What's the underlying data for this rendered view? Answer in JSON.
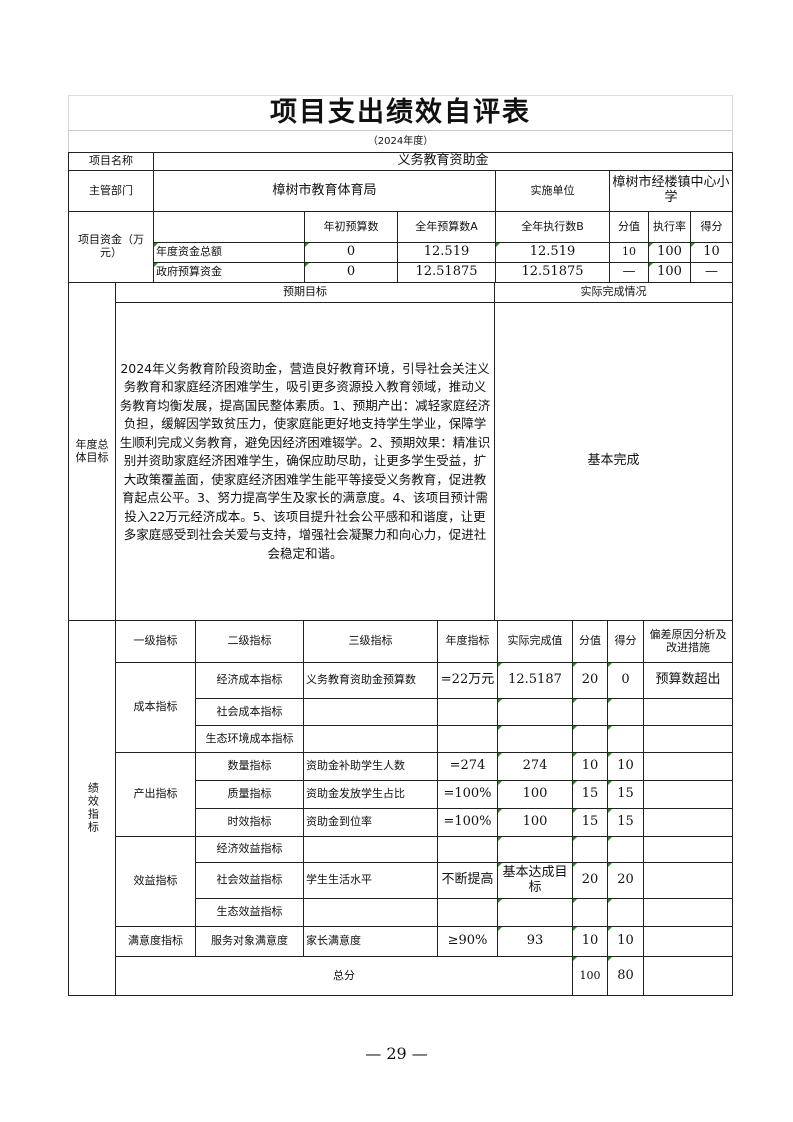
{
  "title": "项目支出绩效自评表",
  "subtitle": "（2024年度）",
  "project": {
    "name_label": "项目名称",
    "name": "义务教育资助金",
    "dept_label": "主管部门",
    "dept": "樟树市教育体育局",
    "impl_label": "实施单位",
    "impl": "樟树市经楼镇中心小学"
  },
  "funds": {
    "label": "项目资金（万元）",
    "headers": [
      "年初预算数",
      "全年预算数A",
      "全年执行数B",
      "分值",
      "执行率",
      "得分"
    ],
    "rows": [
      {
        "name": "年度资金总额",
        "initial": "0",
        "budget": "12.519",
        "executed": "12.519",
        "score_value": "10",
        "rate": "100",
        "score": "10"
      },
      {
        "name": "政府预算资金",
        "initial": "0",
        "budget": "12.51875",
        "executed": "12.51875",
        "score_value": "—",
        "rate": "100",
        "score": "—"
      }
    ]
  },
  "goals": {
    "label": "年度总体目标",
    "expected_label": "预期目标",
    "actual_label": "实际完成情况",
    "expected": "2024年义务教育阶段资助金，营造良好教育环境，引导社会关注义务教育和家庭经济困难学生，吸引更多资源投入教育领域，推动义务教育均衡发展，提高国民整体素质。1、预期产出：减轻家庭经济负担，缓解因学致贫压力，使家庭能更好地支持学生学业，保障学生顺利完成义务教育，避免因经济困难辍学。2、预期效果：精准识别并资助家庭经济困难学生，确保应助尽助，让更多学生受益，扩大政策覆盖面，使家庭经济困难学生能平等接受义务教育，促进教育起点公平。3、努力提高学生及家长的满意度。4、该项目预计需投入22万元经济成本。5、该项目提升社会公平感和和谐度，让更多家庭感受到社会关爱与支持，增强社会凝聚力和向心力，促进社会稳定和谐。",
    "actual": "基本完成"
  },
  "indicators": {
    "label": "绩效指标",
    "headers": [
      "一级指标",
      "二级指标",
      "三级指标",
      "年度指标",
      "实际完成值",
      "分值",
      "得分",
      "偏差原因分析及改进措施"
    ],
    "groups": [
      {
        "level1": "成本指标",
        "rows": [
          {
            "level2": "经济成本指标",
            "level3": "义务教育资助金预算数",
            "target": "=22万元",
            "actual": "12.5187",
            "value": "20",
            "score": "0",
            "note": "预算数超出"
          },
          {
            "level2": "社会成本指标",
            "level3": "",
            "target": "",
            "actual": "",
            "value": "",
            "score": "",
            "note": ""
          },
          {
            "level2": "生态环境成本指标",
            "level3": "",
            "target": "",
            "actual": "",
            "value": "",
            "score": "",
            "note": ""
          }
        ]
      },
      {
        "level1": "产出指标",
        "rows": [
          {
            "level2": "数量指标",
            "level3": "资助金补助学生人数",
            "target": "=274",
            "actual": "274",
            "value": "10",
            "score": "10",
            "note": ""
          },
          {
            "level2": "质量指标",
            "level3": "资助金发放学生占比",
            "target": "=100%",
            "actual": "100",
            "value": "15",
            "score": "15",
            "note": ""
          },
          {
            "level2": "时效指标",
            "level3": "资助金到位率",
            "target": "=100%",
            "actual": "100",
            "value": "15",
            "score": "15",
            "note": ""
          }
        ]
      },
      {
        "level1": "效益指标",
        "rows": [
          {
            "level2": "经济效益指标",
            "level3": "",
            "target": "",
            "actual": "",
            "value": "",
            "score": "",
            "note": ""
          },
          {
            "level2": "社会效益指标",
            "level3": "学生生活水平",
            "target": "不断提高",
            "actual": "基本达成目标",
            "value": "20",
            "score": "20",
            "note": ""
          },
          {
            "level2": "生态效益指标",
            "level3": "",
            "target": "",
            "actual": "",
            "value": "",
            "score": "",
            "note": ""
          }
        ]
      },
      {
        "level1": "满意度指标",
        "rows": [
          {
            "level2": "服务对象满意度",
            "level3": "家长满意度",
            "target": "≥90%",
            "actual": "93",
            "value": "10",
            "score": "10",
            "note": ""
          }
        ]
      }
    ],
    "total_label": "总分",
    "total_value": "100",
    "total_score": "80"
  },
  "page_number": "— 29 —"
}
